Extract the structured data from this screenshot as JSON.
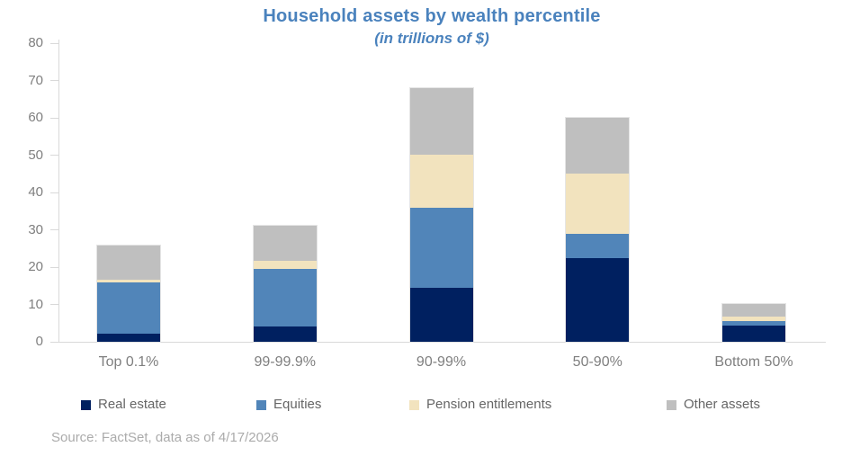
{
  "title": "Household assets by wealth percentile",
  "subtitle": "(in trillions of $)",
  "source_note": "Source: FactSet, data as of 4/17/2026",
  "colors": {
    "title_blue": "#4a82bd",
    "real_estate_navy": "#002060",
    "equities_blue": "#5185b9",
    "pension_tan": "#f2e3be",
    "other_gray": "#bfbfbf",
    "axis_line": "#d9d9d9",
    "tick_label": "#7f7f7f",
    "legend_text": "#666666",
    "source_text": "#ababab"
  },
  "chart_data": {
    "type": "bar",
    "stacked": true,
    "title": "Household assets by wealth percentile",
    "subtitle": "(in trillions of $)",
    "categories": [
      "Top 0.1%",
      "99-99.9%",
      "90-99%",
      "50-90%",
      "Bottom 50%"
    ],
    "series": [
      {
        "name": "Real estate",
        "color": "#002060",
        "values": [
          2.2,
          4.2,
          14.4,
          22.4,
          4.3
        ]
      },
      {
        "name": "Equities",
        "color": "#5185b9",
        "values": [
          13.8,
          15.2,
          21.6,
          6.4,
          1.2
        ]
      },
      {
        "name": "Pension entitlements",
        "color": "#f2e3be",
        "values": [
          0.6,
          2.4,
          14.2,
          16.2,
          1.2
        ]
      },
      {
        "name": "Other assets",
        "color": "#bfbfbf",
        "values": [
          9.1,
          9.3,
          17.8,
          15.1,
          3.4
        ]
      }
    ],
    "stack_totals": [
      25.7,
      31.1,
      68.0,
      60.1,
      10.1
    ],
    "xlabel": "",
    "ylabel": "",
    "ylim": [
      0,
      80
    ],
    "yticks": [
      0,
      10,
      20,
      30,
      40,
      50,
      60,
      70,
      80
    ],
    "grid": false,
    "legend_position": "bottom"
  }
}
